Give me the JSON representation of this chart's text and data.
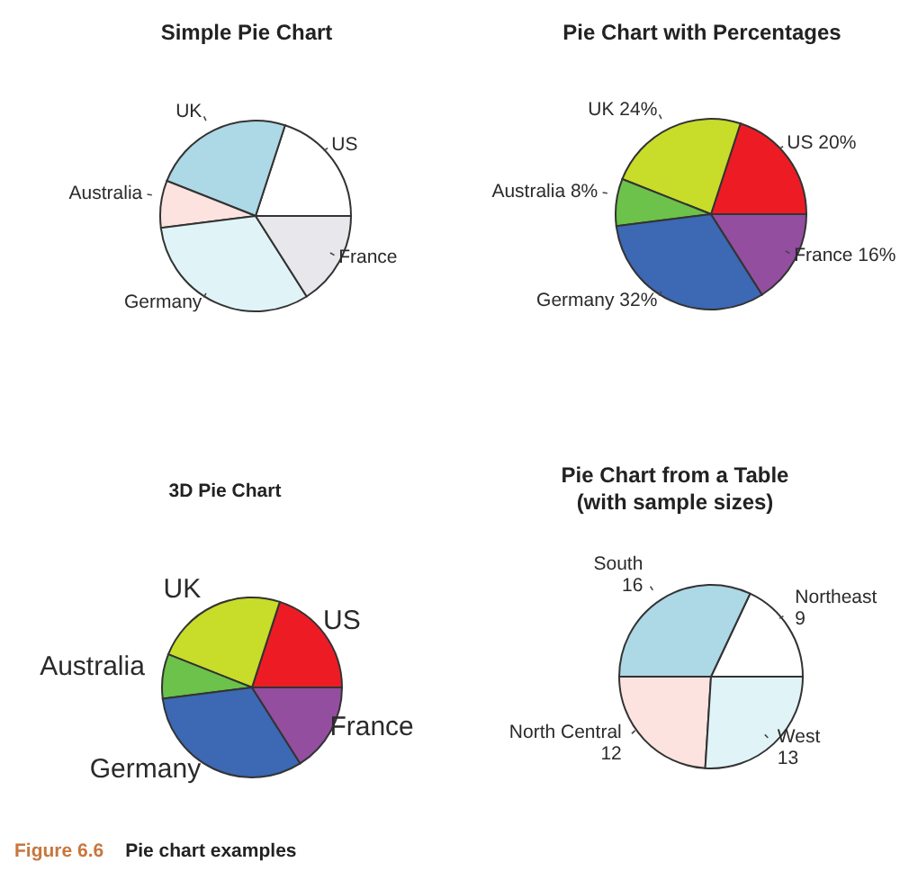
{
  "chart_data": [
    {
      "type": "pie",
      "title": "Simple Pie Chart",
      "categories": [
        "US",
        "UK",
        "Australia",
        "Germany",
        "France"
      ],
      "values": [
        20,
        24,
        8,
        32,
        16
      ],
      "colors": [
        "#ffffff",
        "#add8e6",
        "#fde3e0",
        "#e0f4f8",
        "#e8e8ec"
      ]
    },
    {
      "type": "pie",
      "title": "Pie Chart with Percentages",
      "categories": [
        "US",
        "UK",
        "Australia",
        "Germany",
        "France"
      ],
      "values": [
        20,
        24,
        8,
        32,
        16
      ],
      "colors": [
        "#ed1c24",
        "#c8dc2a",
        "#6cc24a",
        "#3c68b4",
        "#934ea0"
      ],
      "value_labels": [
        "20%",
        "24%",
        "8%",
        "32%",
        "16%"
      ]
    },
    {
      "type": "pie",
      "title": "3D Pie Chart",
      "categories": [
        "US",
        "UK",
        "Australia",
        "Germany",
        "France"
      ],
      "values": [
        20,
        24,
        8,
        32,
        16
      ],
      "colors": [
        "#ed1c24",
        "#c8dc2a",
        "#6cc24a",
        "#3c68b4",
        "#934ea0"
      ],
      "annotations": [
        "Figure 6.6",
        "Pie chart examples"
      ]
    },
    {
      "type": "pie",
      "title": "Pie Chart from a Table",
      "subtitle": "(with sample sizes)",
      "categories": [
        "Northeast",
        "South",
        "North Central",
        "West"
      ],
      "values": [
        9,
        16,
        12,
        13
      ],
      "colors": [
        "#ffffff",
        "#add8e6",
        "#fde3e0",
        "#e0f4f8"
      ],
      "data_labels": true
    }
  ]
}
